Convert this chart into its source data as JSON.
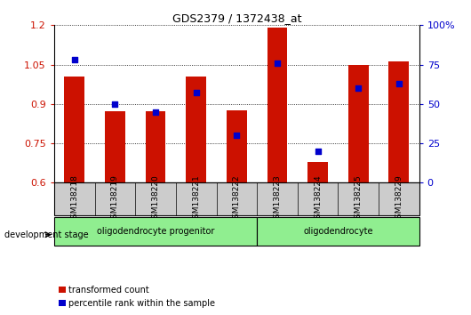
{
  "title": "GDS2379 / 1372438_at",
  "categories": [
    "GSM138218",
    "GSM138219",
    "GSM138220",
    "GSM138221",
    "GSM138222",
    "GSM138223",
    "GSM138224",
    "GSM138225",
    "GSM138229"
  ],
  "red_values": [
    1.005,
    0.872,
    0.872,
    1.003,
    0.875,
    1.19,
    0.68,
    1.05,
    1.062
  ],
  "blue_values": [
    78,
    50,
    45,
    57,
    30,
    76,
    20,
    60,
    63
  ],
  "ylim_left": [
    0.6,
    1.2
  ],
  "ylim_right": [
    0,
    100
  ],
  "yticks_left": [
    0.6,
    0.75,
    0.9,
    1.05,
    1.2
  ],
  "yticks_right": [
    0,
    25,
    50,
    75,
    100
  ],
  "ytick_labels_right": [
    "0",
    "25",
    "50",
    "75",
    "100%"
  ],
  "group1_label": "oligodendrocyte progenitor",
  "group2_label": "oligodendrocyte",
  "group1_indices": [
    0,
    1,
    2,
    3,
    4
  ],
  "group2_indices": [
    5,
    6,
    7,
    8
  ],
  "bar_color": "#CC1100",
  "dot_color": "#0000CC",
  "group1_color": "#90EE90",
  "group2_color": "#90EE90",
  "xtick_bg_color": "#CCCCCC",
  "legend_label_red": "transformed count",
  "legend_label_blue": "percentile rank within the sample",
  "dev_stage_label": "development stage",
  "bar_width": 0.5,
  "dot_size": 25,
  "fig_width": 5.3,
  "fig_height": 3.54,
  "fig_dpi": 100
}
